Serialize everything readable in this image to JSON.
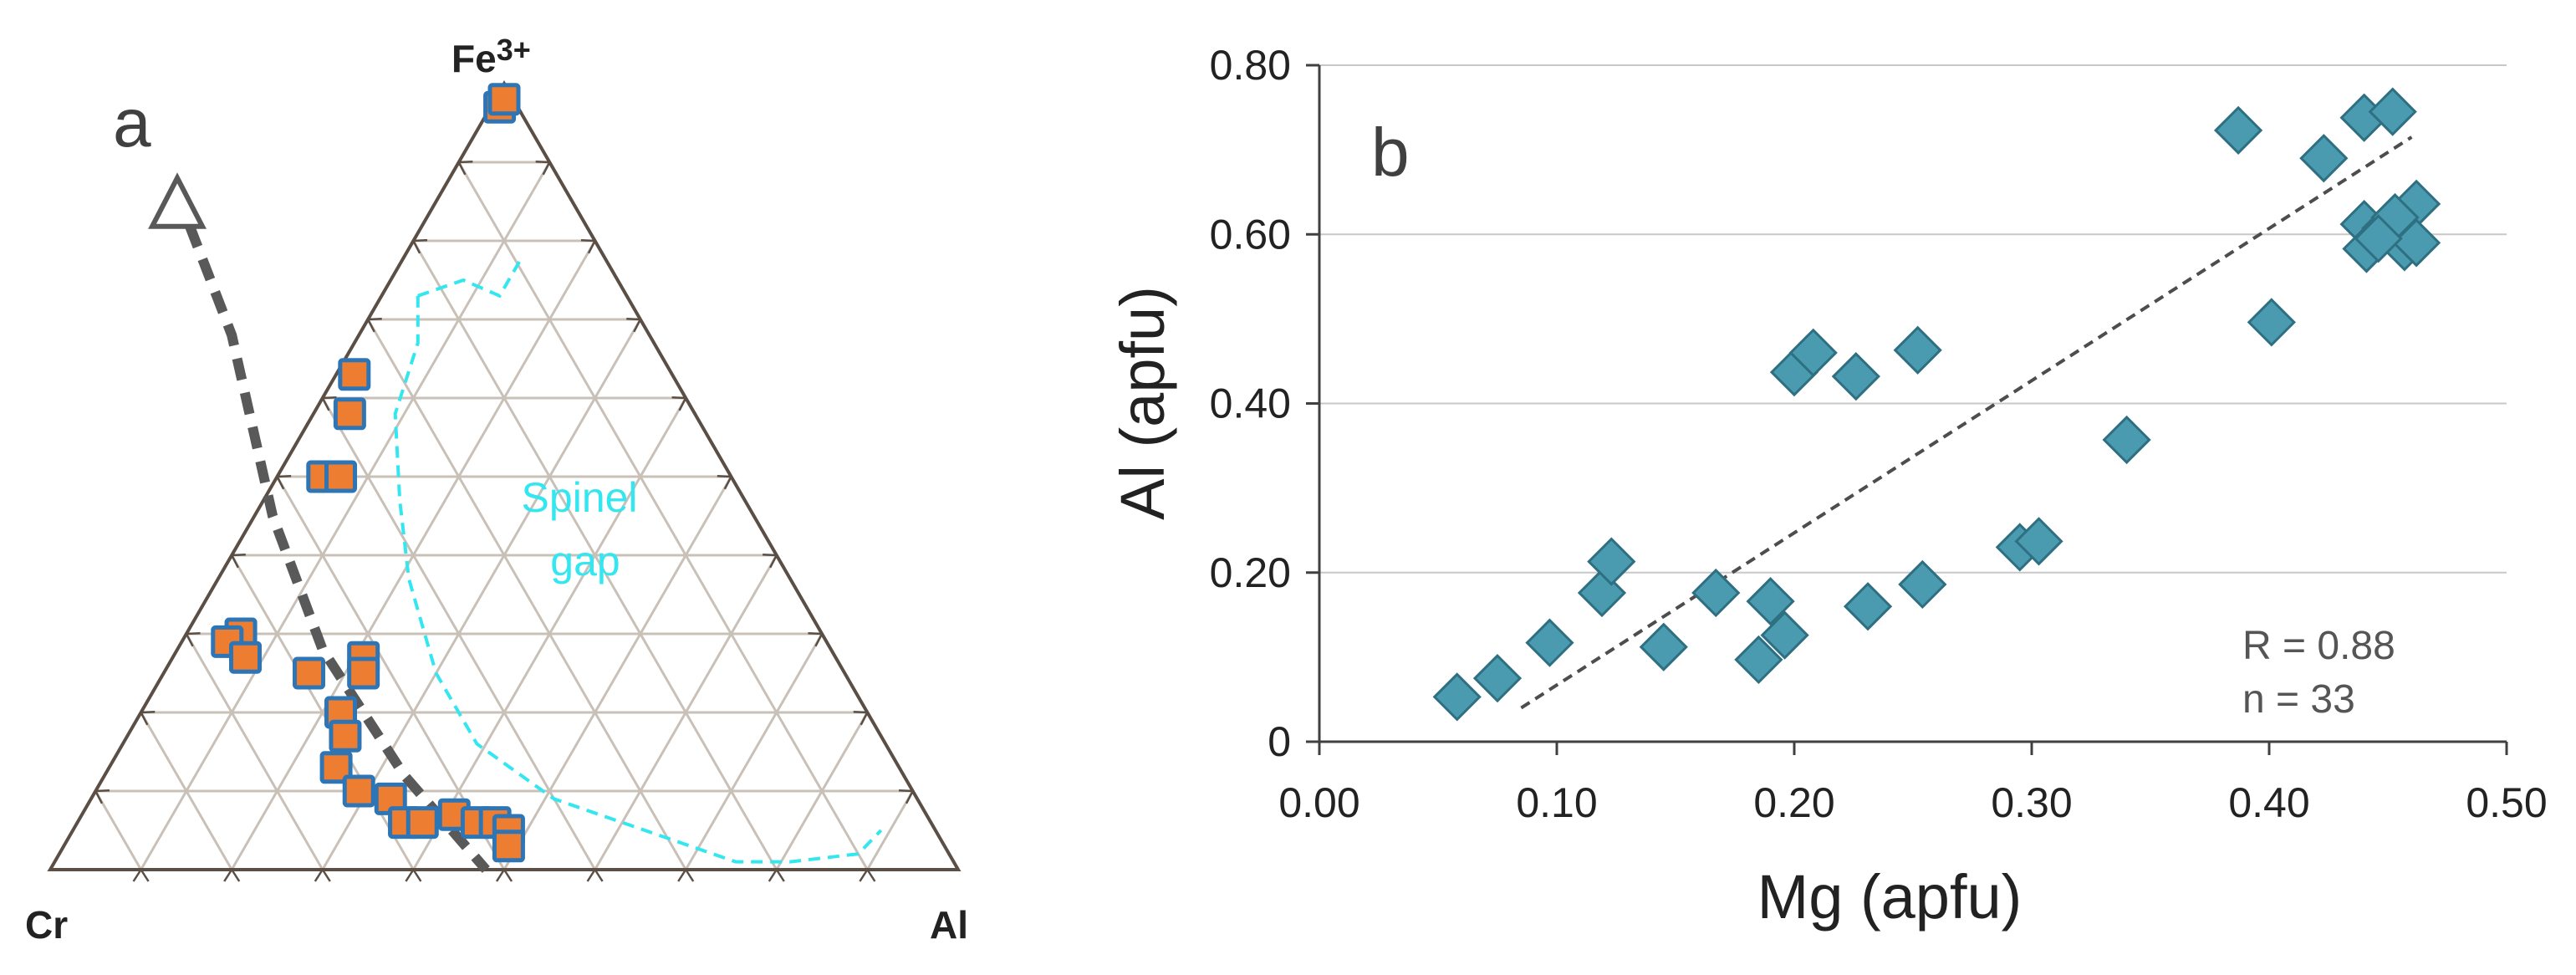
{
  "chart_data": [
    {
      "type": "ternary",
      "panel_label": "a",
      "vertices": {
        "top": "Fe3+",
        "top_base": "Fe",
        "top_sup": "3+",
        "left": "Cr",
        "right": "Al"
      },
      "grid_divisions": 10,
      "region_label": [
        "Spinel",
        "gap"
      ],
      "colors": {
        "marker_fill": "#ED7D31",
        "marker_edge": "#2E75B6",
        "region": "#33E6F0",
        "trend": "#595959",
        "grid": "#C9C0B8",
        "frame": "#5A4E45"
      },
      "points": [
        {
          "cr": 0.02,
          "fe": 0.97,
          "al": 0.01
        },
        {
          "cr": 0.01,
          "fe": 0.98,
          "al": 0.01
        },
        {
          "cr": 0.35,
          "fe": 0.63,
          "al": 0.02
        },
        {
          "cr": 0.38,
          "fe": 0.58,
          "al": 0.04
        },
        {
          "cr": 0.45,
          "fe": 0.5,
          "al": 0.05
        },
        {
          "cr": 0.43,
          "fe": 0.5,
          "al": 0.07
        },
        {
          "cr": 0.64,
          "fe": 0.3,
          "al": 0.06
        },
        {
          "cr": 0.66,
          "fe": 0.29,
          "al": 0.05
        },
        {
          "cr": 0.65,
          "fe": 0.27,
          "al": 0.08
        },
        {
          "cr": 0.59,
          "fe": 0.25,
          "al": 0.16
        },
        {
          "cr": 0.52,
          "fe": 0.27,
          "al": 0.21
        },
        {
          "cr": 0.53,
          "fe": 0.25,
          "al": 0.22
        },
        {
          "cr": 0.58,
          "fe": 0.2,
          "al": 0.22
        },
        {
          "cr": 0.59,
          "fe": 0.17,
          "al": 0.24
        },
        {
          "cr": 0.62,
          "fe": 0.13,
          "al": 0.25
        },
        {
          "cr": 0.61,
          "fe": 0.1,
          "al": 0.29
        },
        {
          "cr": 0.58,
          "fe": 0.09,
          "al": 0.33
        },
        {
          "cr": 0.58,
          "fe": 0.06,
          "al": 0.36
        },
        {
          "cr": 0.56,
          "fe": 0.06,
          "al": 0.38
        },
        {
          "cr": 0.52,
          "fe": 0.07,
          "al": 0.41
        },
        {
          "cr": 0.5,
          "fe": 0.06,
          "al": 0.44
        },
        {
          "cr": 0.48,
          "fe": 0.06,
          "al": 0.46
        },
        {
          "cr": 0.47,
          "fe": 0.05,
          "al": 0.48
        },
        {
          "cr": 0.48,
          "fe": 0.03,
          "al": 0.49
        }
      ],
      "trend_line": [
        {
          "cr": 0.43,
          "fe": 0.86,
          "al": -0.29
        },
        {
          "cr": 0.46,
          "fe": 0.68,
          "al": -0.14
        },
        {
          "cr": 0.53,
          "fe": 0.45,
          "al": 0.02
        },
        {
          "cr": 0.56,
          "fe": 0.28,
          "al": 0.16
        },
        {
          "cr": 0.55,
          "fe": 0.12,
          "al": 0.33
        },
        {
          "cr": 0.52,
          "fe": 0.0,
          "al": 0.48
        }
      ],
      "arrow_head": {
        "cr": 0.42,
        "fe": 0.88,
        "al": -0.3
      },
      "spinel_gap_boundary": [
        {
          "cr": 0.23,
          "fe": 0.73,
          "al": 0.04
        },
        {
          "cr": 0.26,
          "fe": 0.67,
          "al": 0.07
        },
        {
          "cr": 0.33,
          "fe": 0.58,
          "al": 0.09
        },
        {
          "cr": 0.38,
          "fe": 0.47,
          "al": 0.15
        },
        {
          "cr": 0.42,
          "fe": 0.37,
          "al": 0.21
        },
        {
          "cr": 0.45,
          "fe": 0.25,
          "al": 0.3
        },
        {
          "cr": 0.45,
          "fe": 0.16,
          "al": 0.39
        },
        {
          "cr": 0.4,
          "fe": 0.09,
          "al": 0.51
        },
        {
          "cr": 0.32,
          "fe": 0.05,
          "al": 0.63
        },
        {
          "cr": 0.24,
          "fe": 0.01,
          "al": 0.75
        },
        {
          "cr": 0.18,
          "fe": 0.01,
          "al": 0.81
        },
        {
          "cr": 0.1,
          "fe": 0.02,
          "al": 0.88
        },
        {
          "cr": 0.06,
          "fe": 0.05,
          "al": 0.89
        }
      ],
      "spinel_gap_top": [
        {
          "cr": 0.23,
          "fe": 0.73,
          "al": 0.04
        },
        {
          "cr": 0.17,
          "fe": 0.75,
          "al": 0.08
        },
        {
          "cr": 0.14,
          "fe": 0.73,
          "al": 0.13
        },
        {
          "cr": 0.09,
          "fe": 0.78,
          "al": 0.13
        }
      ]
    },
    {
      "type": "scatter",
      "panel_label": "b",
      "xlabel": "Mg (apfu)",
      "ylabel": "Al (apfu)",
      "xlim": [
        0,
        0.5
      ],
      "ylim": [
        0,
        0.8
      ],
      "xticks": [
        0,
        0.1,
        0.2,
        0.3,
        0.4,
        0.5
      ],
      "xtick_labels": [
        "0.00",
        "0.10",
        "0.20",
        "0.30",
        "0.40",
        "0.50"
      ],
      "yticks": [
        0,
        0.2,
        0.4,
        0.6,
        0.8
      ],
      "ytick_labels": [
        "0",
        "0.20",
        "0.40",
        "0.60",
        "0.80"
      ],
      "gridlines": "horizontal",
      "annotation": [
        "R = 0.88",
        "n = 33"
      ],
      "colors": {
        "marker_fill": "#4A9BB0",
        "marker_edge": "#2F6F82",
        "trend": "#4D4D4D",
        "grid": "#C8C8C8",
        "axis": "#404040"
      },
      "points": [
        {
          "x": 0.058,
          "y": 0.053
        },
        {
          "x": 0.075,
          "y": 0.075
        },
        {
          "x": 0.097,
          "y": 0.117
        },
        {
          "x": 0.119,
          "y": 0.176
        },
        {
          "x": 0.123,
          "y": 0.213
        },
        {
          "x": 0.145,
          "y": 0.112
        },
        {
          "x": 0.167,
          "y": 0.176
        },
        {
          "x": 0.185,
          "y": 0.097
        },
        {
          "x": 0.19,
          "y": 0.166
        },
        {
          "x": 0.196,
          "y": 0.126
        },
        {
          "x": 0.2,
          "y": 0.437
        },
        {
          "x": 0.208,
          "y": 0.46
        },
        {
          "x": 0.226,
          "y": 0.432
        },
        {
          "x": 0.231,
          "y": 0.16
        },
        {
          "x": 0.252,
          "y": 0.463
        },
        {
          "x": 0.254,
          "y": 0.186
        },
        {
          "x": 0.295,
          "y": 0.23
        },
        {
          "x": 0.303,
          "y": 0.237
        },
        {
          "x": 0.34,
          "y": 0.357
        },
        {
          "x": 0.387,
          "y": 0.723
        },
        {
          "x": 0.401,
          "y": 0.496
        },
        {
          "x": 0.423,
          "y": 0.69
        },
        {
          "x": 0.44,
          "y": 0.738
        },
        {
          "x": 0.452,
          "y": 0.745
        },
        {
          "x": 0.44,
          "y": 0.612
        },
        {
          "x": 0.441,
          "y": 0.583
        },
        {
          "x": 0.449,
          "y": 0.607
        },
        {
          "x": 0.455,
          "y": 0.597
        },
        {
          "x": 0.457,
          "y": 0.585
        },
        {
          "x": 0.462,
          "y": 0.636
        },
        {
          "x": 0.462,
          "y": 0.59
        },
        {
          "x": 0.453,
          "y": 0.62
        },
        {
          "x": 0.446,
          "y": 0.595
        }
      ],
      "trend_line": [
        {
          "x": 0.085,
          "y": 0.04
        },
        {
          "x": 0.46,
          "y": 0.715
        }
      ]
    }
  ]
}
